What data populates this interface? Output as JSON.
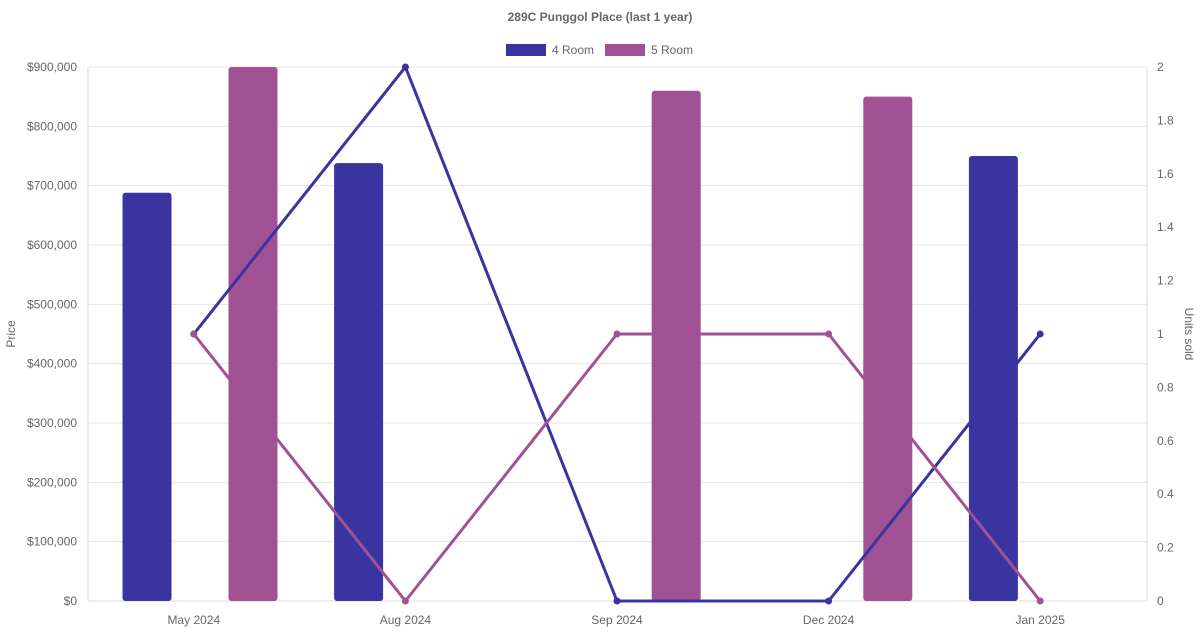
{
  "chart_data": {
    "type": "bar",
    "title": "289C Punggol Place (last 1 year)",
    "categories": [
      "May 2024",
      "Aug 2024",
      "Sep 2024",
      "Dec 2024",
      "Jan 2025"
    ],
    "legend": {
      "placement": "top-center",
      "entries": [
        "4 Room",
        "5 Room"
      ]
    },
    "bar_series": [
      {
        "name": "4 Room",
        "color": "#3a34a0",
        "axis": "y",
        "values": [
          688000,
          738000,
          null,
          null,
          750000
        ]
      },
      {
        "name": "5 Room",
        "color": "#a05294",
        "axis": "y",
        "values": [
          900000,
          null,
          860000,
          850000,
          null
        ]
      }
    ],
    "line_series": [
      {
        "name": "4 Room",
        "color": "#3a34a0",
        "axis": "y2",
        "values": [
          1,
          2,
          0,
          0,
          1
        ]
      },
      {
        "name": "5 Room",
        "color": "#a05294",
        "axis": "y2",
        "values": [
          1,
          0,
          1,
          1,
          0
        ]
      }
    ],
    "y_axis": {
      "label": "Price",
      "range": [
        0,
        900000
      ],
      "ticks": [
        0,
        100000,
        200000,
        300000,
        400000,
        500000,
        600000,
        700000,
        800000,
        900000
      ],
      "tick_labels": [
        "$0",
        "$100,000",
        "$200,000",
        "$300,000",
        "$400,000",
        "$500,000",
        "$600,000",
        "$700,000",
        "$800,000",
        "$900,000"
      ]
    },
    "y2_axis": {
      "label": "Units sold",
      "range": [
        0,
        2
      ],
      "ticks": [
        0,
        0.2,
        0.4,
        0.6,
        0.8,
        1,
        1.2,
        1.4,
        1.6,
        1.8,
        2
      ],
      "tick_labels": [
        "0",
        "0.2",
        "0.4",
        "0.6",
        "0.8",
        "1",
        "1.2",
        "1.4",
        "1.6",
        "1.8",
        "2"
      ]
    },
    "grid": true
  }
}
